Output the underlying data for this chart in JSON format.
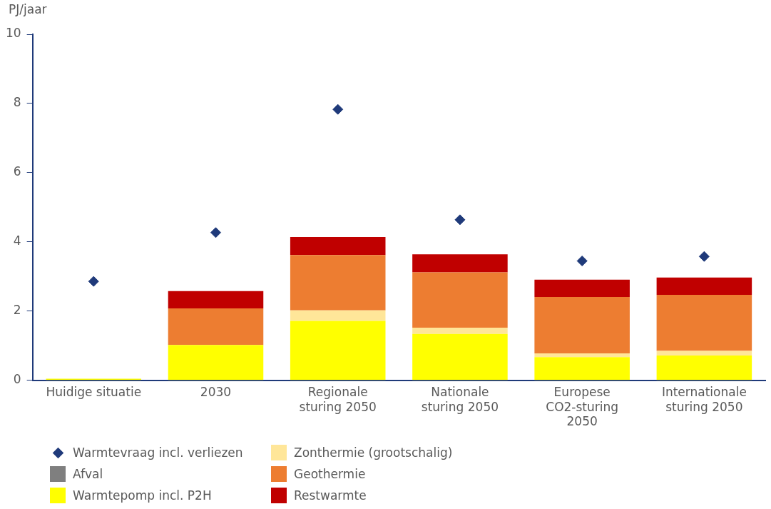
{
  "chart_data": {
    "type": "bar",
    "stacked": true,
    "ylabel": "PJ/jaar",
    "categories": [
      "Huidige situatie",
      "2030",
      "Regionale\nsturing 2050",
      "Nationale\nsturing 2050",
      "Europese\nCO2-sturing\n2050",
      "Internationale\nsturing 2050"
    ],
    "ylim": [
      0,
      10
    ],
    "yticks": [
      0,
      2,
      4,
      6,
      8,
      10
    ],
    "grid": false,
    "legend": "bottom left",
    "series": [
      {
        "name": "Afval",
        "color": "#7f7f7f",
        "values": [
          0,
          0,
          0,
          0,
          0,
          0
        ]
      },
      {
        "name": "Warmtepomp incl. P2H",
        "color": "#ffff00",
        "values": [
          0.05,
          1.02,
          1.72,
          1.34,
          0.67,
          0.72
        ]
      },
      {
        "name": "Zonthermie (grootschalig)",
        "color": "#ffe699",
        "values": [
          0,
          0,
          0.3,
          0.18,
          0.11,
          0.13
        ]
      },
      {
        "name": "Geothermie",
        "color": "#ed7d31",
        "values": [
          0,
          1.06,
          1.6,
          1.6,
          1.63,
          1.62
        ]
      },
      {
        "name": "Restwarmte",
        "color": "#c00000",
        "values": [
          0,
          0.5,
          0.52,
          0.52,
          0.5,
          0.5
        ]
      },
      {
        "name": "Warmtevraag incl. verliezen",
        "type": "scatter",
        "marker": "diamond",
        "color": "#1f3a7a",
        "values": [
          2.86,
          4.27,
          7.83,
          4.64,
          3.45,
          3.58
        ]
      }
    ]
  }
}
